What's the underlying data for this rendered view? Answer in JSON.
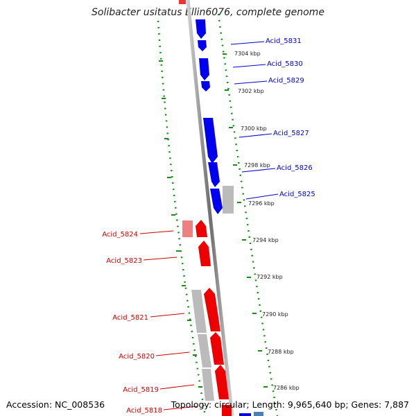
{
  "title": "Solibacter usitatus Ellin6076, complete genome",
  "accession": "Accession: NC_008536",
  "topology": "Topology: circular; Length: 9,965,640 bp; Genes: 7,887",
  "colors": {
    "forward_gene": "#0000ee",
    "reverse_gene": "#ee0000",
    "gray_feature": "#bbbbbb",
    "tick_marks": "#1a8a1a",
    "label_forward": "#0000cc",
    "label_reverse": "#cc0000",
    "backbone": "#888888"
  },
  "scale_labels": [
    "7304 kbp",
    "7302 kbp",
    "7300 kbp",
    "7298 kbp",
    "7296 kbp",
    "7294 kbp",
    "7292 kbp",
    "7290 kbp",
    "7288 kbp",
    "7286 kbp"
  ],
  "forward_gene_labels": [
    "Acid_5831",
    "Acid_5830",
    "Acid_5829",
    "Acid_5827",
    "Acid_5826",
    "Acid_5825"
  ],
  "reverse_gene_labels": [
    "Acid_5824",
    "Acid_5823",
    "Acid_5821",
    "Acid_5820",
    "Acid_5819",
    "Acid_5818"
  ]
}
